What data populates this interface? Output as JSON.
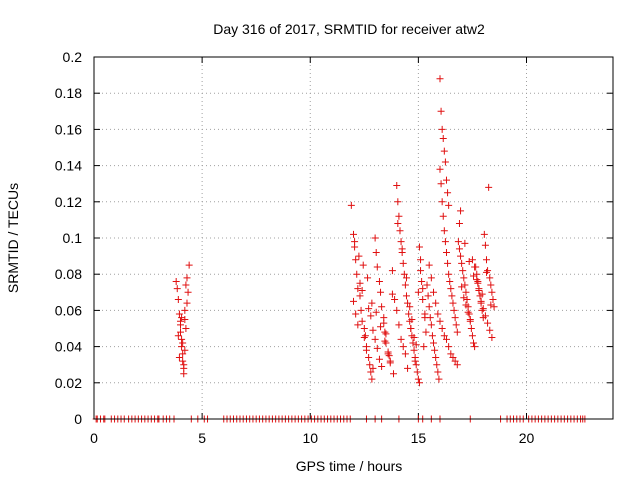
{
  "chart_data": {
    "type": "scatter",
    "title": "Day 316 of 2017, SRMTID for receiver atw2",
    "xlabel": "GPS time / hours",
    "ylabel": "SRMTID / TECUs",
    "xlim": [
      0,
      24
    ],
    "ylim": [
      0,
      0.2
    ],
    "xticks": [
      0,
      5,
      10,
      15,
      20
    ],
    "xtick_labels": [
      "0",
      "5",
      "10",
      "15",
      "20"
    ],
    "yticks": [
      0,
      0.02,
      0.04,
      0.06,
      0.08,
      0.1,
      0.12,
      0.14,
      0.16,
      0.18,
      0.2
    ],
    "ytick_labels": [
      "0",
      "0.02",
      "0.04",
      "0.06",
      "0.08",
      "0.1",
      "0.12",
      "0.14",
      "0.16",
      "0.18",
      "0.2"
    ],
    "grid": true,
    "marker": "+",
    "marker_color": "#e01010",
    "series": [
      {
        "name": "atw2",
        "x": [
          3.8,
          3.85,
          3.9,
          3.95,
          4.0,
          4.0,
          4.05,
          4.05,
          4.1,
          4.1,
          4.15,
          4.15,
          4.2,
          4.2,
          4.25,
          4.3,
          4.3,
          4.35,
          4.4,
          3.9,
          4.0,
          4.1,
          4.2,
          3.95,
          4.05,
          4.15,
          4.25,
          11.9,
          12.0,
          12.05,
          12.1,
          12.15,
          12.2,
          12.3,
          12.35,
          12.4,
          12.5,
          12.55,
          12.6,
          12.7,
          12.75,
          12.8,
          12.85,
          12.9,
          13.0,
          13.05,
          13.1,
          13.2,
          13.25,
          13.3,
          13.4,
          13.45,
          13.5,
          13.6,
          13.7,
          13.8,
          13.9,
          12.0,
          12.1,
          12.2,
          12.3,
          12.4,
          12.5,
          12.6,
          12.7,
          12.8,
          12.9,
          13.0,
          13.1,
          13.2,
          13.3,
          13.4,
          13.5,
          13.6,
          13.7,
          13.8,
          12.05,
          12.25,
          12.45,
          12.65,
          12.85,
          13.05,
          13.25,
          13.45,
          13.65,
          13.85,
          14.0,
          14.05,
          14.1,
          14.15,
          14.2,
          14.25,
          14.3,
          14.35,
          14.4,
          14.45,
          14.5,
          14.55,
          14.6,
          14.65,
          14.7,
          14.75,
          14.8,
          14.85,
          14.9,
          14.95,
          15.0,
          15.05,
          15.1,
          15.15,
          15.2,
          15.3,
          15.35,
          14.0,
          14.1,
          14.2,
          14.3,
          14.4,
          14.5,
          14.6,
          14.7,
          14.8,
          14.9,
          15.0,
          15.1,
          15.2,
          15.3,
          14.05,
          14.25,
          14.45,
          14.65,
          14.85,
          15.05,
          15.25,
          15.4,
          15.45,
          15.5,
          15.55,
          15.6,
          15.65,
          15.7,
          15.75,
          15.8,
          15.85,
          15.9,
          15.95,
          16.0,
          16.05,
          16.1,
          16.15,
          16.2,
          16.25,
          16.3,
          16.35,
          16.4,
          16.45,
          16.5,
          16.55,
          16.6,
          16.65,
          16.7,
          16.75,
          16.8,
          15.5,
          15.6,
          15.7,
          15.8,
          15.9,
          16.0,
          16.1,
          16.2,
          16.3,
          16.4,
          16.5,
          16.6,
          16.7,
          16.8,
          16.0,
          16.05,
          16.1,
          16.15,
          16.2,
          16.25,
          16.3,
          16.35,
          16.4,
          16.85,
          16.9,
          16.95,
          17.0,
          17.05,
          17.1,
          17.15,
          17.2,
          17.25,
          17.3,
          17.35,
          17.4,
          17.45,
          17.5,
          17.55,
          17.6,
          17.65,
          17.7,
          17.75,
          17.8,
          17.85,
          17.9,
          17.95,
          18.0,
          18.05,
          18.1,
          18.15,
          18.2,
          18.25,
          18.3,
          18.35,
          18.4,
          18.45,
          18.5,
          16.9,
          17.0,
          17.1,
          17.2,
          17.3,
          17.4,
          17.5,
          17.6,
          17.7,
          17.8,
          17.9,
          18.0,
          18.1,
          18.2,
          18.3,
          18.4,
          16.95,
          17.15,
          17.35,
          17.55,
          17.75,
          17.95,
          18.15,
          18.35,
          0.1,
          0.3,
          0.5,
          0.8,
          1.1,
          1.4,
          1.6,
          1.9,
          2.2,
          2.5,
          2.8,
          3.0,
          3.2,
          3.5,
          3.7,
          4.5,
          4.8,
          5.1,
          6.0,
          6.3,
          6.6,
          6.9,
          7.2,
          7.5,
          7.8,
          8.1,
          8.4,
          8.7,
          9.0,
          9.3,
          9.6,
          9.9,
          10.2,
          10.5,
          10.8,
          11.1,
          11.4,
          11.7,
          12.6,
          13.0,
          13.3,
          14.1,
          15.0,
          15.2,
          15.6,
          16.0,
          17.4,
          18.8,
          19.1,
          19.4,
          19.7,
          20.1,
          20.4,
          20.7,
          21.0,
          21.3,
          21.6,
          21.9,
          22.2,
          22.5,
          22.7,
          0.15,
          0.45,
          0.95,
          1.25,
          1.75,
          2.05,
          2.35,
          2.65,
          2.95,
          3.35,
          5.25,
          6.15,
          6.45,
          6.75,
          7.05,
          7.35,
          7.65,
          7.95,
          8.25,
          8.55,
          8.85,
          9.15,
          9.45,
          9.75,
          10.05,
          10.35,
          10.65,
          10.95,
          11.25,
          11.55,
          11.85,
          19.25,
          19.55,
          19.85,
          20.25,
          20.55,
          20.85,
          21.15,
          21.45,
          21.75,
          22.05,
          22.35,
          22.6
        ],
        "y": [
          0.076,
          0.072,
          0.066,
          0.058,
          0.054,
          0.048,
          0.044,
          0.04,
          0.036,
          0.032,
          0.028,
          0.025,
          0.055,
          0.06,
          0.074,
          0.078,
          0.064,
          0.07,
          0.085,
          0.046,
          0.052,
          0.042,
          0.038,
          0.034,
          0.056,
          0.03,
          0.05,
          0.118,
          0.102,
          0.095,
          0.088,
          0.08,
          0.072,
          0.068,
          0.06,
          0.054,
          0.05,
          0.046,
          0.04,
          0.034,
          0.03,
          0.026,
          0.022,
          0.028,
          0.1,
          0.092,
          0.084,
          0.076,
          0.07,
          0.062,
          0.056,
          0.048,
          0.042,
          0.036,
          0.032,
          0.082,
          0.066,
          0.065,
          0.058,
          0.052,
          0.075,
          0.071,
          0.045,
          0.038,
          0.061,
          0.057,
          0.049,
          0.044,
          0.039,
          0.033,
          0.029,
          0.053,
          0.047,
          0.037,
          0.031,
          0.069,
          0.098,
          0.09,
          0.085,
          0.078,
          0.064,
          0.059,
          0.051,
          0.043,
          0.035,
          0.025,
          0.129,
          0.12,
          0.112,
          0.104,
          0.098,
          0.092,
          0.086,
          0.08,
          0.074,
          0.068,
          0.064,
          0.058,
          0.054,
          0.05,
          0.046,
          0.042,
          0.038,
          0.034,
          0.03,
          0.026,
          0.022,
          0.095,
          0.088,
          0.076,
          0.066,
          0.056,
          0.048,
          0.06,
          0.052,
          0.044,
          0.04,
          0.036,
          0.028,
          0.062,
          0.055,
          0.045,
          0.041,
          0.07,
          0.082,
          0.072,
          0.058,
          0.108,
          0.094,
          0.078,
          0.05,
          0.032,
          0.02,
          0.04,
          0.074,
          0.068,
          0.062,
          0.056,
          0.052,
          0.046,
          0.042,
          0.038,
          0.034,
          0.03,
          0.026,
          0.022,
          0.138,
          0.13,
          0.12,
          0.112,
          0.104,
          0.098,
          0.092,
          0.086,
          0.08,
          0.076,
          0.072,
          0.068,
          0.064,
          0.06,
          0.056,
          0.052,
          0.048,
          0.085,
          0.078,
          0.07,
          0.064,
          0.058,
          0.054,
          0.05,
          0.046,
          0.044,
          0.04,
          0.036,
          0.034,
          0.032,
          0.03,
          0.188,
          0.17,
          0.16,
          0.155,
          0.148,
          0.142,
          0.132,
          0.125,
          0.118,
          0.098,
          0.094,
          0.09,
          0.086,
          0.082,
          0.078,
          0.074,
          0.07,
          0.066,
          0.062,
          0.058,
          0.054,
          0.05,
          0.046,
          0.042,
          0.04,
          0.084,
          0.08,
          0.076,
          0.072,
          0.068,
          0.064,
          0.06,
          0.056,
          0.102,
          0.096,
          0.088,
          0.082,
          0.128,
          0.078,
          0.074,
          0.07,
          0.066,
          0.062,
          0.108,
          0.073,
          0.067,
          0.063,
          0.059,
          0.055,
          0.088,
          0.084,
          0.077,
          0.071,
          0.065,
          0.061,
          0.057,
          0.053,
          0.049,
          0.045,
          0.115,
          0.097,
          0.087,
          0.079,
          0.075,
          0.069,
          0.081,
          0.063,
          0.0,
          0.0,
          0.0,
          0.0,
          0.0,
          0.0,
          0.0,
          0.0,
          0.0,
          0.0,
          0.0,
          0.0,
          0.0,
          0.0,
          0.0,
          0.0,
          0.0,
          0.0,
          0.0,
          0.0,
          0.0,
          0.0,
          0.0,
          0.0,
          0.0,
          0.0,
          0.0,
          0.0,
          0.0,
          0.0,
          0.0,
          0.0,
          0.0,
          0.0,
          0.0,
          0.0,
          0.0,
          0.0,
          0.0,
          0.0,
          0.0,
          0.0,
          0.0,
          0.0,
          0.0,
          0.0,
          0.0,
          0.0,
          0.0,
          0.0,
          0.0,
          0.0,
          0.0,
          0.0,
          0.0,
          0.0,
          0.0,
          0.0,
          0.0,
          0.0,
          0.0,
          0.0,
          0.0,
          0.0,
          0.0,
          0.0,
          0.0,
          0.0,
          0.0,
          0.0,
          0.0,
          0.0,
          0.0,
          0.0,
          0.0,
          0.0,
          0.0,
          0.0,
          0.0,
          0.0,
          0.0,
          0.0,
          0.0,
          0.0,
          0.0,
          0.0,
          0.0,
          0.0,
          0.0,
          0.0,
          0.0,
          0.0,
          0.0,
          0.0,
          0.0,
          0.0,
          0.0,
          0.0,
          0.0,
          0.0,
          0.0,
          0.0,
          0.0,
          0.0
        ]
      }
    ]
  }
}
